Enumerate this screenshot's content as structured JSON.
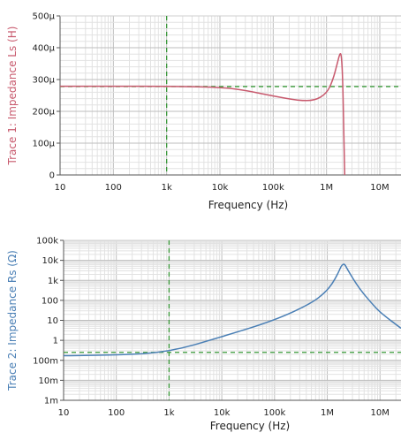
{
  "chart_data": [
    {
      "type": "line",
      "xscale": "log",
      "xlim": [
        10,
        25000000
      ],
      "ylim": [
        0,
        0.0005
      ],
      "xlabel": "Frequency (Hz)",
      "ylabel": "Trace 1: Impedance Ls (H)",
      "x_ticks": [
        "10",
        "100",
        "1k",
        "10k",
        "100k",
        "1M",
        "10M"
      ],
      "y_ticks": [
        "0",
        "100µ",
        "200µ",
        "300µ",
        "400µ",
        "500µ"
      ],
      "grid": true,
      "colors": {
        "series": "#c85a6e",
        "cursor": "#3a9a3a",
        "label": "#c85a6e"
      },
      "cursor": {
        "x": 1000,
        "y": 0.000278
      },
      "series": [
        {
          "x": [
            10,
            100,
            1000,
            10000,
            30000,
            100000,
            300000,
            600000,
            1000000,
            1300000,
            1600000,
            1800000,
            1900000,
            2000000,
            2100000,
            2200000
          ],
          "values": [
            0.000279,
            0.000279,
            0.000279,
            0.000276,
            0.000266,
            0.000248,
            0.000234,
            0.000234,
            0.000256,
            0.000295,
            0.000352,
            0.000385,
            0.000375,
            0.00032,
            0.00015,
            0
          ]
        }
      ]
    },
    {
      "type": "line",
      "xscale": "log",
      "yscale": "log",
      "xlim": [
        10,
        25000000
      ],
      "ylim": [
        0.001,
        100000
      ],
      "xlabel": "Frequency (Hz)",
      "ylabel": "Trace 2: Impedance Rs (Ω)",
      "x_ticks": [
        "10",
        "100",
        "1k",
        "10k",
        "100k",
        "1M",
        "10M"
      ],
      "y_ticks": [
        "1m",
        "10m",
        "100m",
        "1",
        "10",
        "100",
        "1k",
        "10k",
        "100k"
      ],
      "grid": true,
      "colors": {
        "series": "#4a7fb5",
        "cursor": "#3a9a3a",
        "label": "#4a7fb5"
      },
      "cursor": {
        "x": 1000,
        "y": 0.25
      },
      "series": [
        {
          "x": [
            10,
            100,
            1000,
            10000,
            100000,
            500000,
            1000000,
            1500000,
            2000000,
            2500000,
            4000000,
            7000000,
            10000000,
            25000000
          ],
          "values": [
            0.17,
            0.18,
            0.26,
            1.5,
            10,
            70,
            300,
            1500,
            9000,
            3000,
            400,
            70,
            25,
            4
          ]
        }
      ]
    }
  ]
}
